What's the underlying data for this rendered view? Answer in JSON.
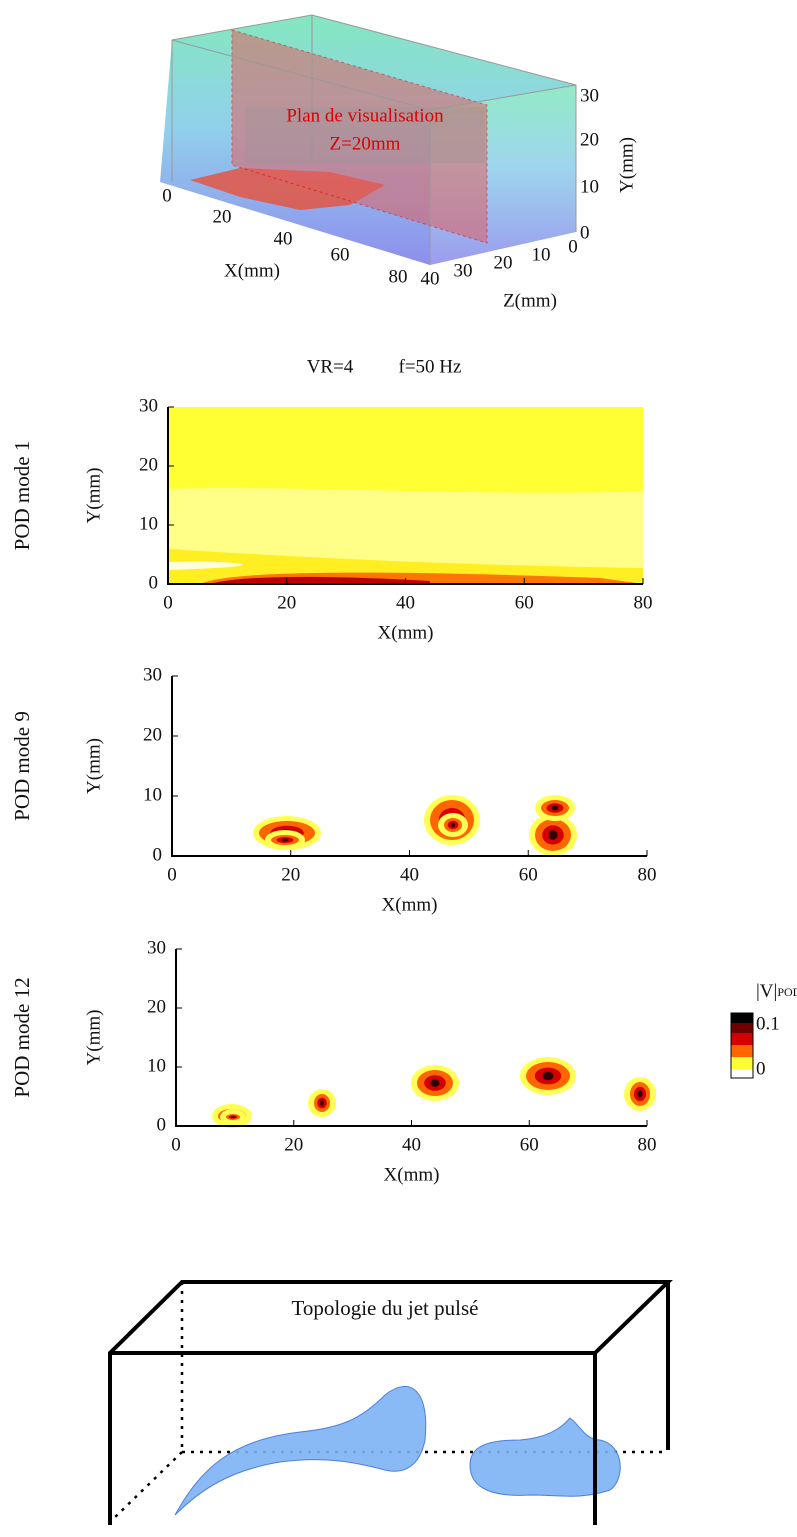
{
  "top_view": {
    "plane_label": [
      "Plan de visualisation",
      "Z=20mm"
    ],
    "x_axis_title": "X(mm)",
    "x_ticks": [
      "0",
      "20",
      "40",
      "60",
      "80"
    ],
    "y_axis_title": "Y(mm)",
    "y_ticks": [
      "0",
      "10",
      "20",
      "30"
    ],
    "z_axis_title": "Z(mm)",
    "z_ticks": [
      "40",
      "30",
      "20",
      "10",
      "0"
    ]
  },
  "header": [
    "VR=4",
    "f=50 Hz"
  ],
  "panels": [
    {
      "label": "POD mode 1",
      "x_axis_title": "X(mm)",
      "y_axis_title": "Y(mm)",
      "xlim": [
        0,
        80
      ],
      "ylim": [
        0,
        30
      ],
      "xticks": [
        0,
        20,
        40,
        60,
        80
      ],
      "yticks": [
        0,
        10,
        20,
        30
      ]
    },
    {
      "label": "POD mode 9",
      "x_axis_title": "X(mm)",
      "y_axis_title": "Y(mm)",
      "xlim": [
        0,
        80
      ],
      "ylim": [
        0,
        30
      ],
      "xticks": [
        0,
        20,
        40,
        60,
        80
      ],
      "yticks": [
        0,
        10,
        20,
        30
      ]
    },
    {
      "label": "POD mode 12",
      "x_axis_title": "X(mm)",
      "y_axis_title": "Y(mm)",
      "xlim": [
        0,
        80
      ],
      "ylim": [
        0,
        30
      ],
      "xticks": [
        0,
        20,
        40,
        60,
        80
      ],
      "yticks": [
        0,
        10,
        20,
        30
      ]
    }
  ],
  "colorbar": {
    "title": "|V|",
    "title_sub": "POD",
    "max_label": "0.1",
    "min_label": "0"
  },
  "bottom": {
    "title": "Topologie du jet pulsé"
  }
}
